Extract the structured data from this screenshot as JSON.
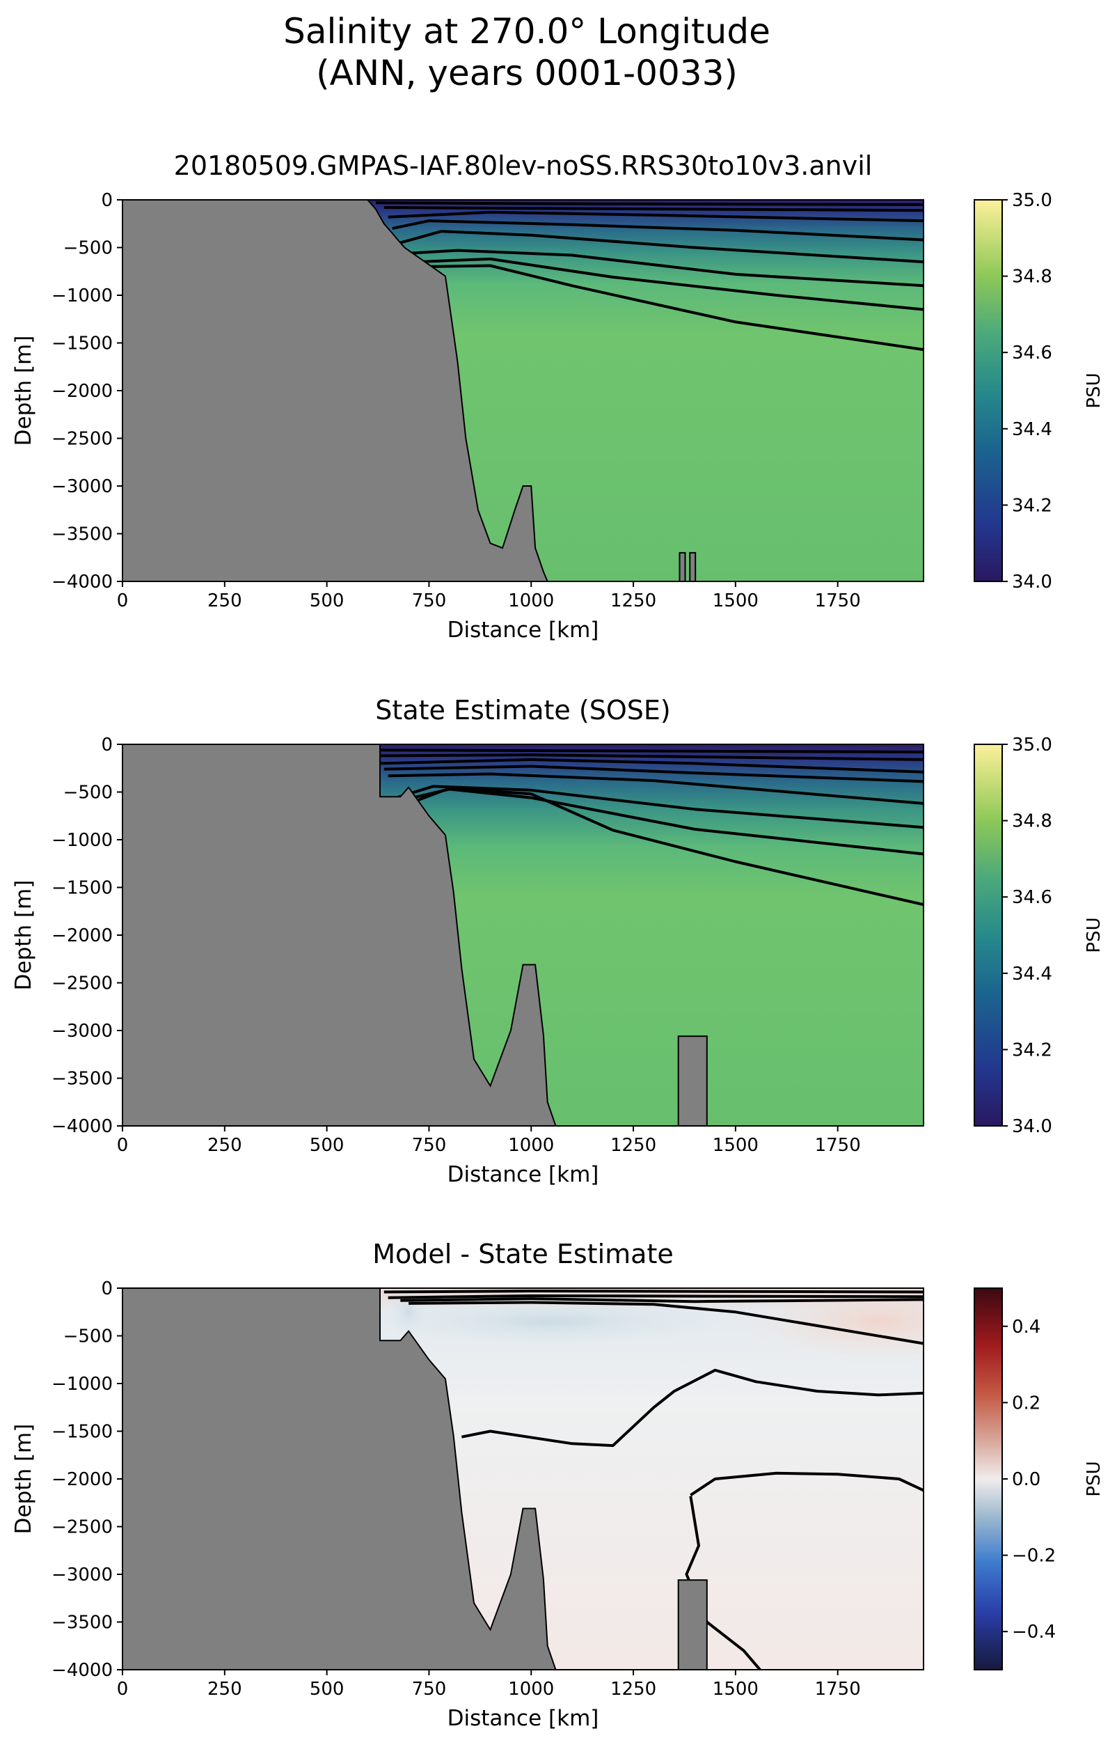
{
  "suptitle": [
    "Salinity at 270.0° Longitude",
    "(ANN, years 0001-0033)"
  ],
  "chart_data": [
    {
      "type": "heatmap",
      "title": "20180509.GMPAS-IAF.80lev-noSS.RRS30to10v3.anvil",
      "xlabel": "Distance [km]",
      "ylabel": "Depth [m]",
      "xlim": [
        0,
        1960
      ],
      "ylim": [
        -4000,
        0
      ],
      "xticks": [
        "0",
        "250",
        "500",
        "750",
        "1000",
        "1250",
        "1500",
        "1750"
      ],
      "xtick_values": [
        0,
        250,
        500,
        750,
        1000,
        1250,
        1500,
        1750
      ],
      "yticks": [
        "0",
        "−500",
        "−1000",
        "−1500",
        "−2000",
        "−2500",
        "−3000",
        "−3500",
        "−4000"
      ],
      "ytick_values": [
        0,
        -500,
        -1000,
        -1500,
        -2000,
        -2500,
        -3000,
        -3500,
        -4000
      ],
      "colorbar": {
        "label": "PSU",
        "range": [
          34.0,
          35.0
        ],
        "ticks": [
          "34.0",
          "34.2",
          "34.4",
          "34.6",
          "34.8",
          "35.0"
        ],
        "tick_values": [
          34.0,
          34.2,
          34.4,
          34.6,
          34.8,
          35.0
        ],
        "colormap": "haline"
      },
      "land_color": "#808080",
      "contour_color": "#000000",
      "deep_value": 34.7,
      "bathymetry": [
        [
          0,
          0
        ],
        [
          600,
          0
        ],
        [
          620,
          -100
        ],
        [
          640,
          -250
        ],
        [
          660,
          -350
        ],
        [
          690,
          -500
        ],
        [
          740,
          -650
        ],
        [
          790,
          -800
        ],
        [
          810,
          -1400
        ],
        [
          820,
          -1700
        ],
        [
          840,
          -2500
        ],
        [
          870,
          -3250
        ],
        [
          900,
          -3600
        ],
        [
          930,
          -3650
        ],
        [
          960,
          -3250
        ],
        [
          980,
          -3000
        ],
        [
          1000,
          -3000
        ],
        [
          1010,
          -3650
        ],
        [
          1030,
          -3900
        ],
        [
          1040,
          -4000
        ]
      ],
      "seamounts": [
        [
          1370,
          -3700
        ],
        [
          1395,
          -3700
        ]
      ],
      "contours": [
        [
          [
            620,
            -30
          ],
          [
            1000,
            -40
          ],
          [
            1960,
            -50
          ]
        ],
        [
          [
            640,
            -80
          ],
          [
            1000,
            -90
          ],
          [
            1960,
            -110
          ]
        ],
        [
          [
            650,
            -180
          ],
          [
            900,
            -130
          ],
          [
            1300,
            -160
          ],
          [
            1960,
            -220
          ]
        ],
        [
          [
            660,
            -300
          ],
          [
            750,
            -220
          ],
          [
            1100,
            -260
          ],
          [
            1500,
            -320
          ],
          [
            1960,
            -420
          ]
        ],
        [
          [
            680,
            -450
          ],
          [
            780,
            -330
          ],
          [
            1000,
            -370
          ],
          [
            1400,
            -500
          ],
          [
            1960,
            -650
          ]
        ],
        [
          [
            700,
            -560
          ],
          [
            820,
            -530
          ],
          [
            1100,
            -580
          ],
          [
            1500,
            -780
          ],
          [
            1960,
            -900
          ]
        ],
        [
          [
            720,
            -650
          ],
          [
            900,
            -620
          ],
          [
            1200,
            -810
          ],
          [
            1600,
            -1000
          ],
          [
            1960,
            -1150
          ]
        ],
        [
          [
            750,
            -700
          ],
          [
            900,
            -690
          ],
          [
            1100,
            -900
          ],
          [
            1500,
            -1280
          ],
          [
            1960,
            -1570
          ]
        ]
      ]
    },
    {
      "type": "heatmap",
      "title": "State Estimate (SOSE)",
      "xlabel": "Distance [km]",
      "ylabel": "Depth [m]",
      "xlim": [
        0,
        1960
      ],
      "ylim": [
        -4000,
        0
      ],
      "xticks": [
        "0",
        "250",
        "500",
        "750",
        "1000",
        "1250",
        "1500",
        "1750"
      ],
      "xtick_values": [
        0,
        250,
        500,
        750,
        1000,
        1250,
        1500,
        1750
      ],
      "yticks": [
        "0",
        "−500",
        "−1000",
        "−1500",
        "−2000",
        "−2500",
        "−3000",
        "−3500",
        "−4000"
      ],
      "ytick_values": [
        0,
        -500,
        -1000,
        -1500,
        -2000,
        -2500,
        -3000,
        -3500,
        -4000
      ],
      "colorbar": {
        "label": "PSU",
        "range": [
          34.0,
          35.0
        ],
        "ticks": [
          "34.0",
          "34.2",
          "34.4",
          "34.6",
          "34.8",
          "35.0"
        ],
        "tick_values": [
          34.0,
          34.2,
          34.4,
          34.6,
          34.8,
          35.0
        ],
        "colormap": "haline"
      },
      "land_color": "#808080",
      "contour_color": "#000000",
      "deep_value": 34.7,
      "bathymetry": [
        [
          0,
          0
        ],
        [
          630,
          0
        ],
        [
          630,
          -550
        ],
        [
          680,
          -550
        ],
        [
          700,
          -450
        ],
        [
          750,
          -750
        ],
        [
          790,
          -950
        ],
        [
          810,
          -1550
        ],
        [
          830,
          -2350
        ],
        [
          860,
          -3300
        ],
        [
          900,
          -3580
        ],
        [
          950,
          -3000
        ],
        [
          980,
          -2310
        ],
        [
          1010,
          -2310
        ],
        [
          1030,
          -3050
        ],
        [
          1040,
          -3750
        ],
        [
          1060,
          -4000
        ]
      ],
      "seamounts": [
        [
          1360,
          1430,
          -3060
        ]
      ],
      "contours": [
        [
          [
            630,
            -60
          ],
          [
            1960,
            -80
          ]
        ],
        [
          [
            630,
            -120
          ],
          [
            1000,
            -110
          ],
          [
            1960,
            -160
          ]
        ],
        [
          [
            630,
            -200
          ],
          [
            1000,
            -160
          ],
          [
            1400,
            -200
          ],
          [
            1960,
            -290
          ]
        ],
        [
          [
            640,
            -260
          ],
          [
            1000,
            -230
          ],
          [
            1400,
            -300
          ],
          [
            1960,
            -390
          ]
        ],
        [
          [
            650,
            -330
          ],
          [
            900,
            -310
          ],
          [
            1300,
            -380
          ],
          [
            1960,
            -620
          ]
        ],
        [
          [
            670,
            -560
          ],
          [
            760,
            -440
          ],
          [
            1000,
            -480
          ],
          [
            1400,
            -680
          ],
          [
            1960,
            -870
          ]
        ],
        [
          [
            700,
            -570
          ],
          [
            800,
            -470
          ],
          [
            1000,
            -560
          ],
          [
            1400,
            -890
          ],
          [
            1960,
            -1150
          ]
        ],
        [
          [
            720,
            -590
          ],
          [
            800,
            -460
          ],
          [
            1000,
            -520
          ],
          [
            1200,
            -900
          ],
          [
            1500,
            -1230
          ],
          [
            1960,
            -1680
          ]
        ]
      ]
    },
    {
      "type": "heatmap",
      "title": "Model - State Estimate",
      "xlabel": "Distance [km]",
      "ylabel": "Depth [m]",
      "xlim": [
        0,
        1960
      ],
      "ylim": [
        -4000,
        0
      ],
      "xticks": [
        "0",
        "250",
        "500",
        "750",
        "1000",
        "1250",
        "1500",
        "1750"
      ],
      "xtick_values": [
        0,
        250,
        500,
        750,
        1000,
        1250,
        1500,
        1750
      ],
      "yticks": [
        "0",
        "−500",
        "−1000",
        "−1500",
        "−2000",
        "−2500",
        "−3000",
        "−3500",
        "−4000"
      ],
      "ytick_values": [
        0,
        -500,
        -1000,
        -1500,
        -2000,
        -2500,
        -3000,
        -3500,
        -4000
      ],
      "colorbar": {
        "label": "PSU",
        "range": [
          -0.5,
          0.5
        ],
        "ticks": [
          "−0.4",
          "−0.2",
          "0.0",
          "0.2",
          "0.4"
        ],
        "tick_values": [
          -0.4,
          -0.2,
          0.0,
          0.2,
          0.4
        ],
        "colormap": "balance"
      },
      "land_color": "#808080",
      "contour_color": "#000000",
      "deep_value": 0.02,
      "bathymetry": [
        [
          0,
          0
        ],
        [
          630,
          0
        ],
        [
          630,
          -550
        ],
        [
          680,
          -550
        ],
        [
          700,
          -450
        ],
        [
          750,
          -750
        ],
        [
          790,
          -950
        ],
        [
          810,
          -1550
        ],
        [
          830,
          -2350
        ],
        [
          860,
          -3300
        ],
        [
          900,
          -3580
        ],
        [
          950,
          -3000
        ],
        [
          980,
          -2310
        ],
        [
          1010,
          -2310
        ],
        [
          1030,
          -3050
        ],
        [
          1040,
          -3750
        ],
        [
          1060,
          -4000
        ]
      ],
      "seamounts": [
        [
          1360,
          1430,
          -3060
        ]
      ],
      "contours": [
        [
          [
            640,
            -40
          ],
          [
            1000,
            -30
          ],
          [
            1960,
            -40
          ]
        ],
        [
          [
            650,
            -100
          ],
          [
            1000,
            -80
          ],
          [
            1960,
            -90
          ]
        ],
        [
          [
            680,
            -130
          ],
          [
            1000,
            -110
          ],
          [
            1400,
            -140
          ],
          [
            1960,
            -120
          ]
        ],
        [
          [
            700,
            -160
          ],
          [
            1000,
            -150
          ],
          [
            1300,
            -170
          ],
          [
            1500,
            -250
          ],
          [
            1960,
            -580
          ]
        ],
        [
          [
            830,
            -1560
          ],
          [
            900,
            -1500
          ],
          [
            1100,
            -1630
          ],
          [
            1200,
            -1650
          ],
          [
            1250,
            -1450
          ],
          [
            1300,
            -1250
          ],
          [
            1350,
            -1080
          ],
          [
            1450,
            -860
          ],
          [
            1550,
            -980
          ],
          [
            1700,
            -1080
          ],
          [
            1850,
            -1120
          ],
          [
            1960,
            -1100
          ]
        ],
        [
          [
            1390,
            -2170
          ],
          [
            1450,
            -2000
          ],
          [
            1600,
            -1940
          ],
          [
            1750,
            -1950
          ],
          [
            1900,
            -2000
          ],
          [
            1960,
            -2120
          ]
        ],
        [
          [
            1390,
            -2180
          ],
          [
            1410,
            -2700
          ],
          [
            1380,
            -3000
          ],
          [
            1430,
            -3500
          ],
          [
            1520,
            -3800
          ],
          [
            1560,
            -4000
          ]
        ]
      ]
    }
  ]
}
